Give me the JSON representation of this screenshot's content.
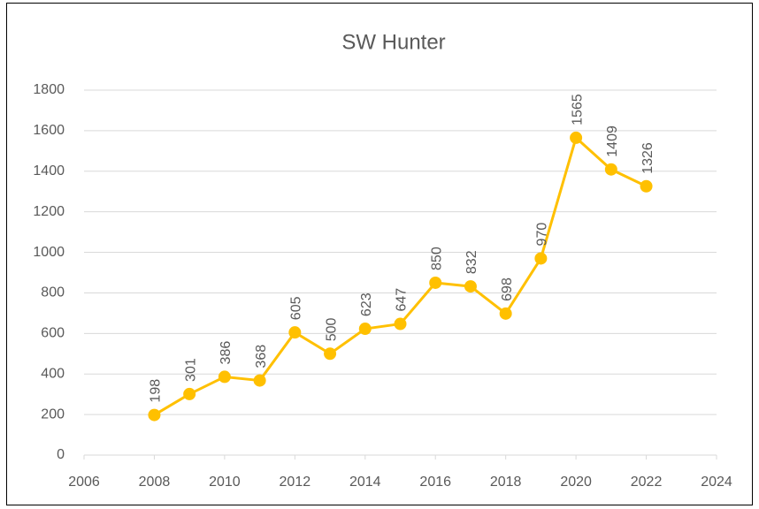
{
  "chart_data": {
    "type": "line",
    "title": "SW Hunter",
    "x": [
      2008,
      2009,
      2010,
      2011,
      2012,
      2013,
      2014,
      2015,
      2016,
      2017,
      2018,
      2019,
      2020,
      2021,
      2022
    ],
    "series": [
      {
        "name": "SW Hunter",
        "color": "#FFC000",
        "values": [
          198,
          301,
          386,
          368,
          605,
          500,
          623,
          647,
          850,
          832,
          698,
          970,
          1565,
          1409,
          1326
        ]
      }
    ],
    "xlim": [
      2006,
      2024
    ],
    "xticks": [
      2006,
      2008,
      2010,
      2012,
      2014,
      2016,
      2018,
      2020,
      2022,
      2024
    ],
    "ylim": [
      0,
      1800
    ],
    "yticks": [
      0,
      200,
      400,
      600,
      800,
      1000,
      1200,
      1400,
      1600,
      1800
    ],
    "grid": true
  }
}
